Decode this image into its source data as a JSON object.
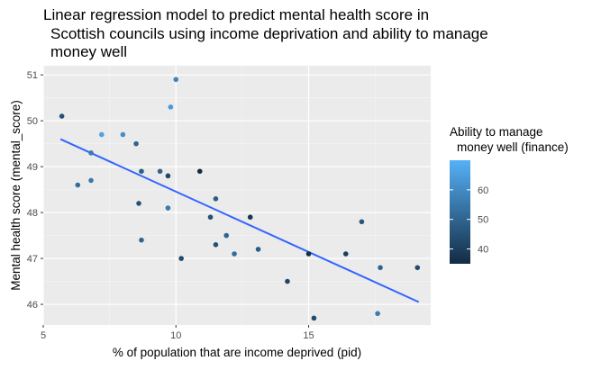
{
  "chart_data": {
    "type": "scatter",
    "title_lines": [
      "Linear regression model to predict mental health score in",
      "Scottish councils using income deprivation and ability to manage",
      "money well"
    ],
    "xlabel": "% of population that are income deprived (pid)",
    "ylabel": "Mental health score (mental_score)",
    "xlim": [
      5,
      19.6
    ],
    "ylim": [
      45.55,
      51.2
    ],
    "x_ticks": [
      5,
      10,
      15
    ],
    "y_ticks": [
      46,
      47,
      48,
      49,
      50,
      51
    ],
    "grid": true,
    "panel_background": "#ebebeb",
    "legend": {
      "title_lines": [
        "Ability to manage",
        "money well (finance)"
      ],
      "placement": "right",
      "ticks": [
        40,
        50,
        60
      ],
      "range": [
        35,
        70
      ],
      "color_low": "#132b43",
      "color_high": "#56b1f7"
    },
    "fit_line": {
      "x": [
        5.65,
        19.15
      ],
      "y": [
        49.6,
        46.05
      ],
      "color": "#3366ff"
    },
    "points": [
      {
        "x": 5.7,
        "y": 50.1,
        "finance": 45
      },
      {
        "x": 6.3,
        "y": 48.6,
        "finance": 52
      },
      {
        "x": 6.8,
        "y": 49.3,
        "finance": 56
      },
      {
        "x": 6.8,
        "y": 48.7,
        "finance": 55
      },
      {
        "x": 7.2,
        "y": 49.7,
        "finance": 66
      },
      {
        "x": 8.0,
        "y": 49.7,
        "finance": 61
      },
      {
        "x": 8.5,
        "y": 49.5,
        "finance": 50
      },
      {
        "x": 8.6,
        "y": 48.2,
        "finance": 45
      },
      {
        "x": 8.7,
        "y": 48.9,
        "finance": 48
      },
      {
        "x": 8.7,
        "y": 47.4,
        "finance": 50
      },
      {
        "x": 9.4,
        "y": 48.9,
        "finance": 50
      },
      {
        "x": 9.7,
        "y": 48.8,
        "finance": 42
      },
      {
        "x": 9.7,
        "y": 48.1,
        "finance": 55
      },
      {
        "x": 9.8,
        "y": 50.3,
        "finance": 64
      },
      {
        "x": 10.0,
        "y": 50.9,
        "finance": 58
      },
      {
        "x": 10.2,
        "y": 47.0,
        "finance": 43
      },
      {
        "x": 10.9,
        "y": 48.9,
        "finance": 35
      },
      {
        "x": 11.3,
        "y": 47.9,
        "finance": 45
      },
      {
        "x": 11.5,
        "y": 48.3,
        "finance": 48
      },
      {
        "x": 11.5,
        "y": 47.3,
        "finance": 45
      },
      {
        "x": 11.9,
        "y": 47.5,
        "finance": 50
      },
      {
        "x": 12.2,
        "y": 47.1,
        "finance": 52
      },
      {
        "x": 12.8,
        "y": 47.9,
        "finance": 38
      },
      {
        "x": 13.1,
        "y": 47.2,
        "finance": 48
      },
      {
        "x": 14.2,
        "y": 46.5,
        "finance": 42
      },
      {
        "x": 15.0,
        "y": 47.1,
        "finance": 36
      },
      {
        "x": 15.2,
        "y": 45.7,
        "finance": 43
      },
      {
        "x": 16.4,
        "y": 47.1,
        "finance": 40
      },
      {
        "x": 17.0,
        "y": 47.8,
        "finance": 46
      },
      {
        "x": 17.6,
        "y": 45.8,
        "finance": 56
      },
      {
        "x": 17.7,
        "y": 46.8,
        "finance": 50
      },
      {
        "x": 19.1,
        "y": 46.8,
        "finance": 44
      }
    ]
  }
}
